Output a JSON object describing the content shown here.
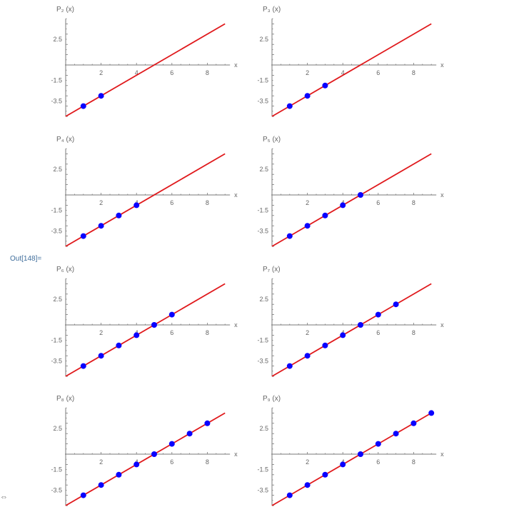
{
  "cell_label": "Out[148]=",
  "side_glyph": "⇔",
  "colors": {
    "line": "#e0191c",
    "points": "#0a00ff",
    "axis": "#7a7a7a",
    "text": "#666666"
  },
  "chart_data": [
    {
      "type": "line",
      "title": "P₂ (x)",
      "xlabel": "x",
      "xlim": [
        0,
        9.2
      ],
      "ylim": [
        -5,
        4.5
      ],
      "x_ticks": [
        2,
        4,
        6,
        8
      ],
      "y_ticks": [
        2.5,
        -1.5,
        -3.5
      ],
      "series": [
        {
          "kind": "line",
          "x": [
            0,
            9
          ],
          "y": [
            -5,
            4
          ]
        },
        {
          "kind": "points",
          "x": [
            1,
            2
          ],
          "y": [
            -4,
            -3
          ]
        }
      ]
    },
    {
      "type": "line",
      "title": "P₃ (x)",
      "xlabel": "x",
      "xlim": [
        0,
        9.2
      ],
      "ylim": [
        -5,
        4.5
      ],
      "x_ticks": [
        2,
        4,
        6,
        8
      ],
      "y_ticks": [
        2.5,
        -1.5,
        -3.5
      ],
      "series": [
        {
          "kind": "line",
          "x": [
            0,
            9
          ],
          "y": [
            -5,
            4
          ]
        },
        {
          "kind": "points",
          "x": [
            1,
            2,
            3
          ],
          "y": [
            -4,
            -3,
            -2
          ]
        }
      ]
    },
    {
      "type": "line",
      "title": "P₄ (x)",
      "xlabel": "x",
      "xlim": [
        0,
        9.2
      ],
      "ylim": [
        -5,
        4.5
      ],
      "x_ticks": [
        2,
        4,
        6,
        8
      ],
      "y_ticks": [
        2.5,
        -1.5,
        -3.5
      ],
      "series": [
        {
          "kind": "line",
          "x": [
            0,
            9
          ],
          "y": [
            -5,
            4
          ]
        },
        {
          "kind": "points",
          "x": [
            1,
            2,
            3,
            4
          ],
          "y": [
            -4,
            -3,
            -2,
            -1
          ]
        }
      ]
    },
    {
      "type": "line",
      "title": "P₅ (x)",
      "xlabel": "x",
      "xlim": [
        0,
        9.2
      ],
      "ylim": [
        -5,
        4.5
      ],
      "x_ticks": [
        2,
        4,
        6,
        8
      ],
      "y_ticks": [
        2.5,
        -1.5,
        -3.5
      ],
      "series": [
        {
          "kind": "line",
          "x": [
            0,
            9
          ],
          "y": [
            -5,
            4
          ]
        },
        {
          "kind": "points",
          "x": [
            1,
            2,
            3,
            4,
            5
          ],
          "y": [
            -4,
            -3,
            -2,
            -1,
            0
          ]
        }
      ]
    },
    {
      "type": "line",
      "title": "P₆ (x)",
      "xlabel": "x",
      "xlim": [
        0,
        9.2
      ],
      "ylim": [
        -5,
        4.5
      ],
      "x_ticks": [
        2,
        4,
        6,
        8
      ],
      "y_ticks": [
        2.5,
        -1.5,
        -3.5
      ],
      "series": [
        {
          "kind": "line",
          "x": [
            0,
            9
          ],
          "y": [
            -5,
            4
          ]
        },
        {
          "kind": "points",
          "x": [
            1,
            2,
            3,
            4,
            5,
            6
          ],
          "y": [
            -4,
            -3,
            -2,
            -1,
            0,
            1
          ]
        }
      ]
    },
    {
      "type": "line",
      "title": "P₇ (x)",
      "xlabel": "x",
      "xlim": [
        0,
        9.2
      ],
      "ylim": [
        -5,
        4.5
      ],
      "x_ticks": [
        2,
        4,
        6,
        8
      ],
      "y_ticks": [
        2.5,
        -1.5,
        -3.5
      ],
      "series": [
        {
          "kind": "line",
          "x": [
            0,
            9
          ],
          "y": [
            -5,
            4
          ]
        },
        {
          "kind": "points",
          "x": [
            1,
            2,
            3,
            4,
            5,
            6,
            7
          ],
          "y": [
            -4,
            -3,
            -2,
            -1,
            0,
            1,
            2
          ]
        }
      ]
    },
    {
      "type": "line",
      "title": "P₈ (x)",
      "xlabel": "x",
      "xlim": [
        0,
        9.2
      ],
      "ylim": [
        -5,
        4.5
      ],
      "x_ticks": [
        2,
        4,
        6,
        8
      ],
      "y_ticks": [
        2.5,
        -1.5,
        -3.5
      ],
      "series": [
        {
          "kind": "line",
          "x": [
            0,
            9
          ],
          "y": [
            -5,
            4
          ]
        },
        {
          "kind": "points",
          "x": [
            1,
            2,
            3,
            4,
            5,
            6,
            7,
            8
          ],
          "y": [
            -4,
            -3,
            -2,
            -1,
            0,
            1,
            2,
            3
          ]
        }
      ]
    },
    {
      "type": "line",
      "title": "P₉ (x)",
      "xlabel": "x",
      "xlim": [
        0,
        9.2
      ],
      "ylim": [
        -5,
        4.5
      ],
      "x_ticks": [
        2,
        4,
        6,
        8
      ],
      "y_ticks": [
        2.5,
        -1.5,
        -3.5
      ],
      "series": [
        {
          "kind": "line",
          "x": [
            0,
            9
          ],
          "y": [
            -5,
            4
          ]
        },
        {
          "kind": "points",
          "x": [
            1,
            2,
            3,
            4,
            5,
            6,
            7,
            8,
            9
          ],
          "y": [
            -4,
            -3,
            -2,
            -1,
            0,
            1,
            2,
            3,
            4
          ]
        }
      ]
    }
  ]
}
